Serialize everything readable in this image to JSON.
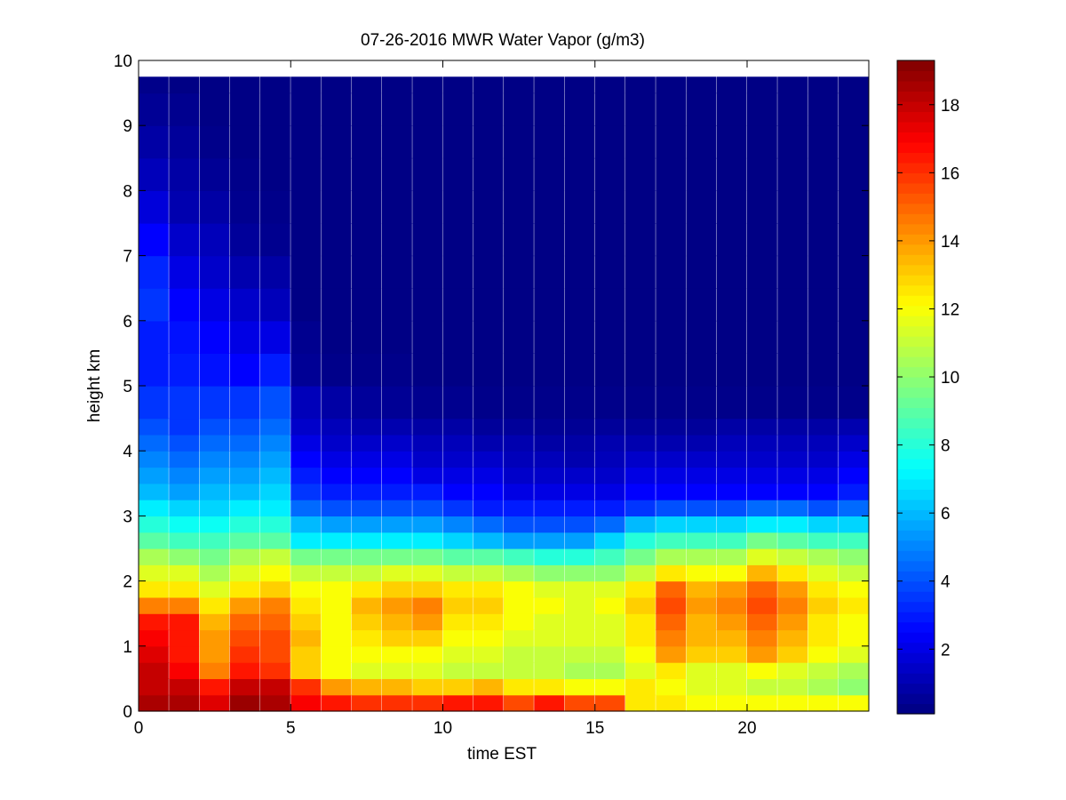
{
  "chart_data": {
    "type": "heatmap",
    "title": "07-26-2016 MWR Water Vapor (g/m3)",
    "xlabel": "time EST",
    "ylabel": "height km",
    "xlim": [
      0,
      24
    ],
    "ylim": [
      0,
      10
    ],
    "x_ticks": [
      0,
      5,
      10,
      15,
      20
    ],
    "y_ticks": [
      0,
      1,
      2,
      3,
      4,
      5,
      6,
      7,
      8,
      9,
      10
    ],
    "colorbar": {
      "colormap": "jet",
      "range": [
        0.1,
        19.3
      ],
      "ticks": [
        2,
        4,
        6,
        8,
        10,
        12,
        14,
        16,
        18
      ]
    },
    "grid": false,
    "time_hours": [
      0,
      1,
      2,
      3,
      4,
      5,
      6,
      7,
      8,
      9,
      10,
      11,
      12,
      13,
      14,
      15,
      16,
      17,
      18,
      19,
      20,
      21,
      22,
      23
    ],
    "height_km": [
      0,
      0.25,
      0.5,
      0.75,
      1,
      1.25,
      1.5,
      1.75,
      2,
      2.25,
      2.5,
      2.75,
      3,
      3.25,
      3.5,
      3.75,
      4,
      4.25,
      4.5,
      5,
      5.5,
      6,
      6.5,
      7,
      7.5,
      8,
      8.5,
      9,
      9.5
    ],
    "values": [
      [
        18.5,
        18.5,
        17.5,
        18.8,
        18.5,
        17.0,
        16.5,
        16.0,
        16.0,
        16.0,
        16.5,
        16.5,
        15.5,
        16.5,
        15.5,
        15.5,
        12.5,
        12.5,
        12.0,
        12.0,
        12.0,
        12.0,
        12.0,
        12.0
      ],
      [
        18.0,
        18.0,
        16.5,
        18.0,
        18.0,
        16.0,
        14.0,
        13.5,
        13.5,
        13.0,
        13.0,
        13.5,
        12.5,
        12.5,
        12.0,
        12.0,
        12.5,
        12.0,
        11.5,
        11.5,
        11.0,
        11.0,
        10.5,
        10.0
      ],
      [
        18.0,
        17.0,
        14.5,
        16.5,
        16.0,
        13.0,
        12.0,
        11.5,
        11.5,
        11.5,
        11.0,
        11.0,
        11.0,
        11.0,
        10.5,
        10.5,
        11.5,
        12.5,
        11.5,
        11.5,
        12.0,
        11.5,
        11.0,
        10.5
      ],
      [
        17.5,
        16.5,
        14.0,
        16.0,
        15.5,
        13.0,
        12.0,
        12.0,
        12.0,
        12.0,
        11.5,
        11.5,
        11.0,
        11.0,
        11.0,
        11.0,
        12.0,
        14.0,
        13.0,
        13.0,
        14.0,
        13.0,
        12.0,
        11.5
      ],
      [
        17.0,
        16.5,
        14.0,
        15.5,
        15.5,
        13.5,
        12.0,
        12.5,
        13.0,
        13.0,
        12.0,
        12.0,
        11.5,
        11.5,
        11.5,
        11.5,
        12.5,
        14.5,
        13.5,
        13.5,
        14.5,
        13.5,
        12.5,
        12.0
      ],
      [
        16.5,
        16.5,
        13.5,
        15.0,
        15.0,
        13.0,
        12.0,
        13.0,
        13.5,
        14.0,
        12.5,
        12.5,
        12.0,
        11.5,
        11.5,
        11.5,
        12.5,
        15.0,
        13.5,
        14.0,
        15.0,
        14.0,
        12.5,
        12.0
      ],
      [
        14.5,
        14.5,
        12.5,
        14.0,
        14.5,
        12.5,
        12.0,
        13.5,
        14.0,
        14.5,
        13.0,
        13.0,
        12.0,
        12.0,
        11.5,
        12.0,
        13.0,
        15.5,
        14.0,
        14.5,
        15.5,
        14.5,
        13.0,
        12.5
      ],
      [
        12.5,
        12.5,
        11.5,
        12.5,
        13.0,
        12.0,
        12.0,
        12.5,
        13.0,
        13.0,
        12.5,
        12.5,
        12.0,
        11.5,
        11.5,
        11.5,
        12.5,
        15.0,
        13.5,
        14.0,
        15.0,
        14.0,
        12.5,
        12.0
      ],
      [
        11.5,
        11.5,
        10.5,
        11.5,
        12.0,
        11.0,
        11.0,
        11.0,
        11.5,
        11.5,
        11.0,
        11.0,
        10.5,
        10.0,
        10.0,
        10.0,
        11.0,
        12.5,
        12.0,
        12.0,
        13.5,
        12.5,
        11.5,
        11.0
      ],
      [
        10.5,
        10.0,
        9.5,
        10.5,
        11.0,
        9.5,
        9.5,
        9.5,
        9.5,
        9.5,
        9.0,
        9.0,
        8.5,
        8.0,
        8.0,
        8.5,
        9.5,
        10.5,
        10.5,
        10.5,
        11.5,
        11.0,
        10.5,
        10.0
      ],
      [
        9.0,
        8.5,
        8.5,
        9.0,
        9.0,
        7.0,
        7.0,
        7.0,
        7.0,
        7.0,
        6.5,
        6.0,
        5.5,
        5.5,
        5.5,
        6.5,
        8.0,
        8.5,
        8.5,
        8.5,
        9.5,
        9.0,
        8.5,
        8.5
      ],
      [
        8.0,
        7.5,
        7.5,
        8.0,
        8.0,
        6.0,
        5.5,
        5.5,
        5.5,
        5.5,
        5.0,
        4.5,
        4.0,
        4.0,
        4.0,
        4.5,
        6.0,
        6.5,
        6.5,
        6.5,
        7.0,
        7.0,
        6.5,
        6.5
      ],
      [
        7.0,
        6.5,
        6.5,
        7.0,
        7.0,
        4.5,
        4.0,
        4.0,
        4.0,
        4.0,
        3.5,
        3.0,
        3.0,
        3.0,
        3.0,
        3.0,
        3.5,
        4.0,
        4.0,
        4.0,
        4.5,
        4.5,
        4.0,
        4.5
      ],
      [
        6.0,
        5.5,
        6.0,
        6.0,
        6.5,
        3.5,
        3.0,
        3.0,
        3.0,
        3.0,
        2.5,
        2.5,
        2.0,
        2.0,
        2.0,
        2.0,
        2.5,
        2.5,
        2.5,
        2.5,
        2.5,
        2.5,
        2.5,
        3.0
      ],
      [
        5.5,
        5.0,
        5.5,
        5.5,
        6.0,
        3.0,
        2.5,
        2.5,
        2.5,
        2.0,
        2.0,
        2.0,
        1.5,
        1.5,
        1.5,
        1.5,
        2.0,
        2.0,
        2.0,
        2.0,
        2.0,
        2.0,
        2.0,
        2.5
      ],
      [
        5.0,
        4.5,
        5.0,
        5.0,
        5.5,
        2.5,
        2.0,
        2.0,
        2.0,
        1.5,
        1.5,
        1.5,
        1.2,
        1.2,
        1.0,
        1.2,
        1.5,
        1.5,
        1.5,
        1.5,
        1.5,
        1.5,
        1.5,
        2.0
      ],
      [
        4.5,
        4.0,
        4.5,
        4.5,
        5.0,
        2.0,
        1.5,
        1.5,
        1.5,
        1.2,
        1.2,
        1.0,
        1.0,
        0.8,
        0.8,
        1.0,
        1.0,
        1.0,
        1.0,
        1.2,
        1.2,
        1.2,
        1.2,
        1.5
      ],
      [
        4.0,
        3.5,
        4.0,
        4.0,
        4.5,
        1.5,
        1.2,
        1.0,
        1.0,
        0.8,
        0.8,
        0.6,
        0.6,
        0.5,
        0.5,
        0.6,
        0.6,
        0.6,
        0.6,
        0.8,
        0.8,
        0.8,
        0.8,
        1.0
      ],
      [
        3.5,
        3.5,
        3.5,
        3.5,
        4.0,
        1.2,
        0.8,
        0.6,
        0.5,
        0.4,
        0.4,
        0.3,
        0.3,
        0.3,
        0.3,
        0.3,
        0.3,
        0.3,
        0.3,
        0.3,
        0.3,
        0.3,
        0.3,
        0.3
      ],
      [
        3.0,
        3.0,
        2.8,
        2.5,
        3.0,
        0.5,
        0.3,
        0.3,
        0.3,
        0.2,
        0.2,
        0.2,
        0.2,
        0.2,
        0.2,
        0.2,
        0.2,
        0.2,
        0.2,
        0.2,
        0.2,
        0.2,
        0.2,
        0.2
      ],
      [
        3.0,
        2.8,
        2.5,
        2.0,
        2.0,
        0.4,
        0.2,
        0.2,
        0.2,
        0.2,
        0.2,
        0.2,
        0.2,
        0.2,
        0.2,
        0.2,
        0.2,
        0.2,
        0.2,
        0.2,
        0.2,
        0.2,
        0.2,
        0.2
      ],
      [
        3.5,
        2.5,
        2.0,
        1.5,
        1.2,
        0.2,
        0.2,
        0.2,
        0.2,
        0.2,
        0.2,
        0.2,
        0.2,
        0.2,
        0.2,
        0.2,
        0.2,
        0.2,
        0.2,
        0.2,
        0.2,
        0.2,
        0.2,
        0.2
      ],
      [
        3.2,
        2.0,
        1.5,
        1.0,
        0.8,
        0.2,
        0.2,
        0.2,
        0.2,
        0.2,
        0.2,
        0.2,
        0.2,
        0.2,
        0.2,
        0.2,
        0.2,
        0.2,
        0.2,
        0.2,
        0.2,
        0.2,
        0.2,
        0.2
      ],
      [
        2.5,
        1.5,
        1.2,
        0.6,
        0.4,
        0.2,
        0.2,
        0.2,
        0.2,
        0.2,
        0.2,
        0.2,
        0.2,
        0.2,
        0.2,
        0.2,
        0.2,
        0.2,
        0.2,
        0.2,
        0.2,
        0.2,
        0.2,
        0.2
      ],
      [
        1.8,
        1.0,
        0.8,
        0.4,
        0.3,
        0.2,
        0.2,
        0.2,
        0.2,
        0.2,
        0.2,
        0.2,
        0.2,
        0.2,
        0.2,
        0.2,
        0.2,
        0.2,
        0.2,
        0.2,
        0.2,
        0.2,
        0.2,
        0.2
      ],
      [
        1.2,
        0.8,
        0.5,
        0.3,
        0.2,
        0.2,
        0.2,
        0.2,
        0.2,
        0.2,
        0.2,
        0.2,
        0.2,
        0.2,
        0.2,
        0.2,
        0.2,
        0.2,
        0.2,
        0.2,
        0.2,
        0.2,
        0.2,
        0.2
      ],
      [
        0.8,
        0.6,
        0.3,
        0.2,
        0.2,
        0.2,
        0.2,
        0.2,
        0.2,
        0.2,
        0.2,
        0.2,
        0.2,
        0.2,
        0.2,
        0.2,
        0.2,
        0.2,
        0.2,
        0.2,
        0.2,
        0.2,
        0.2,
        0.2
      ],
      [
        0.5,
        0.4,
        0.2,
        0.2,
        0.2,
        0.2,
        0.2,
        0.2,
        0.2,
        0.2,
        0.2,
        0.2,
        0.2,
        0.2,
        0.2,
        0.2,
        0.2,
        0.2,
        0.2,
        0.2,
        0.2,
        0.2,
        0.2,
        0.2
      ],
      [
        0.3,
        0.2,
        0.2,
        0.2,
        0.2,
        0.2,
        0.2,
        0.2,
        0.2,
        0.2,
        0.2,
        0.2,
        0.2,
        0.2,
        0.2,
        0.2,
        0.2,
        0.2,
        0.2,
        0.2,
        0.2,
        0.2,
        0.2,
        0.2
      ]
    ]
  }
}
